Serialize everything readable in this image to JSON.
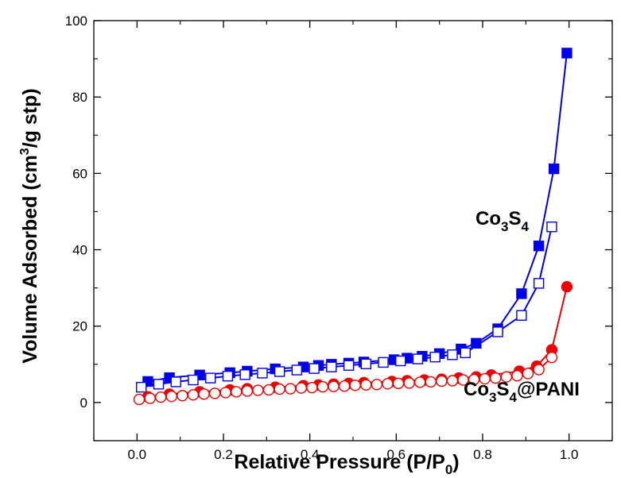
{
  "chart_data": {
    "type": "scatter",
    "title": "",
    "xlabel": {
      "main": "Relative Pressure (P/P",
      "sub": "0",
      "tail": ")"
    },
    "ylabel": {
      "pre": "Volume Adsorbed (cm",
      "sup": "3",
      "post": "/g stp)"
    },
    "xlim": [
      -0.1,
      1.1
    ],
    "ylim": [
      -10,
      100
    ],
    "xticks": [
      "0.0",
      "0.2",
      "0.4",
      "0.6",
      "0.8",
      "1.0"
    ],
    "yticks": [
      "0",
      "20",
      "40",
      "60",
      "80",
      "100"
    ],
    "grid": false,
    "annotations": [
      {
        "name": "co3s4",
        "parts": [
          [
            "Co",
            ""
          ],
          [
            "3",
            "sub"
          ],
          [
            "S",
            ""
          ],
          [
            "4",
            "sub"
          ]
        ]
      },
      {
        "name": "co3s4-pani",
        "parts": [
          [
            "Co",
            ""
          ],
          [
            "3",
            "sub"
          ],
          [
            "S",
            ""
          ],
          [
            "4",
            "sub"
          ],
          [
            "@PANI",
            ""
          ]
        ]
      }
    ],
    "series": [
      {
        "label": "Co3S4",
        "branch": "desorption",
        "color": "#0000ee",
        "marker": "square",
        "filled": true,
        "x": [
          0.025,
          0.075,
          0.145,
          0.215,
          0.255,
          0.32,
          0.385,
          0.42,
          0.45,
          0.49,
          0.525,
          0.595,
          0.625,
          0.66,
          0.7,
          0.75,
          0.785,
          0.835,
          0.89,
          0.93,
          0.965,
          0.995
        ],
        "y": [
          5.5,
          6.5,
          7.2,
          7.8,
          8.2,
          8.8,
          9.3,
          9.7,
          10.0,
          10.3,
          10.6,
          11.2,
          11.6,
          12.1,
          12.8,
          14.0,
          15.5,
          19.3,
          28.5,
          41.0,
          61.2,
          91.5
        ]
      },
      {
        "label": "Co3S4",
        "branch": "adsorption",
        "color": "#0000ee",
        "marker": "square",
        "filled": false,
        "x": [
          0.01,
          0.05,
          0.09,
          0.13,
          0.17,
          0.21,
          0.25,
          0.29,
          0.33,
          0.37,
          0.41,
          0.45,
          0.49,
          0.53,
          0.57,
          0.61,
          0.65,
          0.69,
          0.73,
          0.76,
          0.835,
          0.89,
          0.93,
          0.96
        ],
        "y": [
          4.0,
          4.8,
          5.4,
          5.9,
          6.4,
          6.9,
          7.3,
          7.7,
          8.1,
          8.5,
          8.9,
          9.3,
          9.7,
          10.1,
          10.5,
          10.9,
          11.4,
          11.9,
          12.5,
          13.0,
          18.5,
          22.8,
          31.2,
          46.0
        ]
      },
      {
        "label": "Co3S4@PANI",
        "branch": "desorption",
        "color": "#ee0000",
        "marker": "circle",
        "filled": true,
        "x": [
          0.025,
          0.075,
          0.145,
          0.215,
          0.255,
          0.32,
          0.385,
          0.42,
          0.455,
          0.49,
          0.525,
          0.59,
          0.625,
          0.665,
          0.705,
          0.745,
          0.785,
          0.82,
          0.885,
          0.925,
          0.96,
          0.995
        ],
        "y": [
          1.5,
          2.2,
          2.8,
          3.3,
          3.6,
          4.0,
          4.4,
          4.6,
          4.8,
          5.0,
          5.2,
          5.5,
          5.7,
          5.9,
          6.1,
          6.4,
          6.7,
          7.2,
          8.2,
          9.5,
          13.8,
          30.3
        ]
      },
      {
        "label": "Co3S4@PANI",
        "branch": "adsorption",
        "color": "#ee0000",
        "marker": "circle",
        "filled": false,
        "x": [
          0.005,
          0.03,
          0.055,
          0.08,
          0.105,
          0.13,
          0.155,
          0.18,
          0.205,
          0.23,
          0.255,
          0.28,
          0.305,
          0.33,
          0.355,
          0.38,
          0.405,
          0.43,
          0.455,
          0.48,
          0.505,
          0.53,
          0.555,
          0.58,
          0.605,
          0.63,
          0.655,
          0.68,
          0.705,
          0.73,
          0.755,
          0.78,
          0.805,
          0.83,
          0.855,
          0.88,
          0.905,
          0.93,
          0.96
        ],
        "y": [
          0.8,
          1.1,
          1.4,
          1.6,
          1.8,
          2.0,
          2.2,
          2.4,
          2.6,
          2.8,
          3.0,
          3.2,
          3.3,
          3.5,
          3.6,
          3.8,
          3.9,
          4.1,
          4.2,
          4.3,
          4.5,
          4.6,
          4.7,
          4.9,
          5.0,
          5.1,
          5.3,
          5.4,
          5.6,
          5.7,
          5.9,
          6.0,
          6.2,
          6.4,
          6.7,
          7.0,
          7.6,
          8.6,
          11.8
        ]
      }
    ]
  }
}
